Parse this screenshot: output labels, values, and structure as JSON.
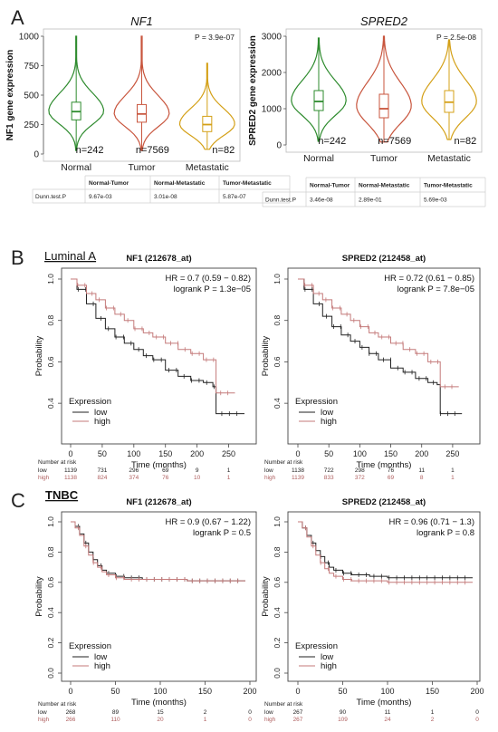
{
  "panels": [
    {
      "letter": "A",
      "violins": [
        0,
        1
      ],
      "tables": [
        0,
        1
      ]
    },
    {
      "letter": "B",
      "subtitle": "Luminal A",
      "km": [
        0,
        1
      ]
    },
    {
      "letter": "C",
      "subtitle": "TNBC",
      "km": [
        2,
        3
      ]
    }
  ],
  "chart_data": [
    {
      "type": "violin",
      "title": "NF1",
      "ylabel": "NF1 gene expression",
      "ylim": [
        0,
        1000
      ],
      "yticks": [
        0,
        250,
        500,
        750,
        1000
      ],
      "pvalue": "P = 3.9e-07",
      "categories": [
        "Normal",
        "Tumor",
        "Metastatic"
      ],
      "counts": [
        "n=242",
        "n=7569",
        "n=82"
      ],
      "colors": [
        "#2e8b2e",
        "#c8553d",
        "#d4a017"
      ],
      "series": [
        {
          "name": "Normal",
          "max": 1000,
          "q3": 440,
          "median": 360,
          "q1": 290,
          "min": 30
        },
        {
          "name": "Tumor",
          "max": 1000,
          "q3": 420,
          "median": 340,
          "q1": 270,
          "min": 30
        },
        {
          "name": "Metastatic",
          "max": 770,
          "q3": 320,
          "median": 250,
          "q1": 190,
          "min": 40
        }
      ]
    },
    {
      "type": "violin",
      "title": "SPRED2",
      "ylabel": "SPRED2 gene expression",
      "ylim": [
        0,
        3000
      ],
      "yticks": [
        0,
        1000,
        2000,
        3000
      ],
      "pvalue": "P = 2.5e-08",
      "categories": [
        "Normal",
        "Tumor",
        "Metastatic"
      ],
      "counts": [
        "n=242",
        "n=7569",
        "n=82"
      ],
      "colors": [
        "#2e8b2e",
        "#c8553d",
        "#d4a017"
      ],
      "series": [
        {
          "name": "Normal",
          "max": 2950,
          "q3": 1500,
          "median": 1200,
          "q1": 950,
          "min": 100
        },
        {
          "name": "Tumor",
          "max": 3000,
          "q3": 1400,
          "median": 1000,
          "q1": 750,
          "min": 80
        },
        {
          "name": "Metastatic",
          "max": 2900,
          "q3": 1500,
          "median": 1180,
          "q1": 900,
          "min": 150
        }
      ]
    },
    {
      "type": "table",
      "row_label": "Dunn.test.P",
      "columns": [
        "Normal-Tumor",
        "Normal-Metastatic",
        "Tumor-Metastatic"
      ],
      "values": [
        "9.67e-03",
        "3.01e-08",
        "5.87e-07"
      ]
    },
    {
      "type": "table",
      "row_label": "Dunn.test.P",
      "columns": [
        "Normal-Tumor",
        "Normal-Metastatic",
        "Tumor-Metastatic"
      ],
      "values": [
        "3.46e-08",
        "2.89e-01",
        "5.69e-03"
      ]
    },
    {
      "type": "line",
      "title": "NF1 (212678_at)",
      "hr": "HR = 0.7 (0.59 − 0.82)",
      "logrank": "logrank P = 1.3e−05",
      "xlabel": "Time (months)",
      "ylabel": "Probability",
      "xlim": [
        0,
        275
      ],
      "ylim": [
        0.3,
        1.0
      ],
      "xticks": [
        0,
        50,
        100,
        150,
        200,
        250
      ],
      "yticks": [
        0.4,
        0.6,
        0.8,
        1.0
      ],
      "legend_title": "Expression",
      "legend_placement": "bottom-left",
      "series": [
        {
          "name": "low",
          "color": "#222222",
          "x": [
            0,
            10,
            25,
            40,
            55,
            70,
            85,
            100,
            115,
            130,
            150,
            170,
            190,
            210,
            225,
            230,
            275
          ],
          "y": [
            1.0,
            0.95,
            0.88,
            0.81,
            0.76,
            0.72,
            0.69,
            0.66,
            0.63,
            0.61,
            0.56,
            0.53,
            0.51,
            0.5,
            0.48,
            0.35,
            0.35
          ]
        },
        {
          "name": "high",
          "color": "#c47a7a",
          "x": [
            0,
            10,
            25,
            40,
            55,
            70,
            85,
            100,
            115,
            130,
            150,
            170,
            190,
            210,
            230,
            240,
            260
          ],
          "y": [
            1.0,
            0.97,
            0.93,
            0.9,
            0.86,
            0.83,
            0.8,
            0.76,
            0.74,
            0.72,
            0.69,
            0.66,
            0.64,
            0.61,
            0.45,
            0.45,
            0.45
          ]
        }
      ],
      "risk_title": "Number at risk",
      "risk_x": [
        0,
        50,
        100,
        150,
        200,
        250
      ],
      "risk": [
        {
          "name": "low",
          "values": [
            "1139",
            "731",
            "296",
            "69",
            "9",
            "1"
          ]
        },
        {
          "name": "high",
          "values": [
            "1138",
            "824",
            "374",
            "76",
            "10",
            "1"
          ]
        }
      ]
    },
    {
      "type": "line",
      "title": "SPRED2 (212458_at)",
      "hr": "HR = 0.72 (0.61 − 0.85)",
      "logrank": "logrank P = 7.8e−05",
      "xlabel": "Time (months)",
      "ylabel": "Probability",
      "xlim": [
        0,
        275
      ],
      "ylim": [
        0.3,
        1.0
      ],
      "xticks": [
        0,
        50,
        100,
        150,
        200,
        250
      ],
      "yticks": [
        0.4,
        0.6,
        0.8,
        1.0
      ],
      "legend_title": "Expression",
      "legend_placement": "bottom-left",
      "series": [
        {
          "name": "low",
          "color": "#222222",
          "x": [
            0,
            10,
            25,
            40,
            55,
            70,
            85,
            100,
            115,
            130,
            150,
            170,
            190,
            210,
            225,
            230,
            265
          ],
          "y": [
            1.0,
            0.95,
            0.88,
            0.82,
            0.77,
            0.73,
            0.7,
            0.67,
            0.64,
            0.61,
            0.57,
            0.55,
            0.52,
            0.5,
            0.49,
            0.35,
            0.35
          ]
        },
        {
          "name": "high",
          "color": "#c47a7a",
          "x": [
            0,
            10,
            25,
            40,
            55,
            70,
            85,
            100,
            115,
            130,
            150,
            170,
            190,
            210,
            230,
            250,
            260
          ],
          "y": [
            1.0,
            0.97,
            0.93,
            0.9,
            0.86,
            0.83,
            0.8,
            0.77,
            0.74,
            0.72,
            0.69,
            0.66,
            0.64,
            0.6,
            0.48,
            0.48,
            0.48
          ]
        }
      ],
      "risk_title": "Number at risk",
      "risk_x": [
        0,
        50,
        100,
        150,
        200,
        250
      ],
      "risk": [
        {
          "name": "low",
          "values": [
            "1138",
            "722",
            "298",
            "76",
            "11",
            "1"
          ]
        },
        {
          "name": "high",
          "values": [
            "1139",
            "833",
            "372",
            "69",
            "8",
            "1"
          ]
        }
      ]
    },
    {
      "type": "line",
      "title": "NF1 (212678_at)",
      "hr": "HR = 0.9 (0.67 − 1.22)",
      "logrank": "logrank P = 0.5",
      "xlabel": "Time (months)",
      "ylabel": "Probability",
      "xlim": [
        0,
        200
      ],
      "ylim": [
        0.0,
        1.0
      ],
      "xticks": [
        0,
        50,
        100,
        150,
        200
      ],
      "yticks": [
        0.0,
        0.2,
        0.4,
        0.6,
        0.8,
        1.0
      ],
      "legend_title": "Expression",
      "legend_placement": "bottom-left",
      "series": [
        {
          "name": "low",
          "color": "#222222",
          "x": [
            0,
            5,
            10,
            15,
            20,
            25,
            30,
            35,
            40,
            50,
            60,
            80,
            100,
            130,
            160,
            195
          ],
          "y": [
            1.0,
            0.97,
            0.92,
            0.86,
            0.8,
            0.75,
            0.71,
            0.68,
            0.66,
            0.64,
            0.63,
            0.62,
            0.62,
            0.61,
            0.61,
            0.61
          ]
        },
        {
          "name": "high",
          "color": "#c47a7a",
          "x": [
            0,
            5,
            10,
            15,
            20,
            25,
            30,
            35,
            40,
            50,
            60,
            80,
            100,
            130,
            160,
            195
          ],
          "y": [
            1.0,
            0.96,
            0.91,
            0.84,
            0.78,
            0.73,
            0.7,
            0.67,
            0.65,
            0.63,
            0.62,
            0.62,
            0.62,
            0.61,
            0.61,
            0.61
          ]
        }
      ],
      "risk_title": "Number at risk",
      "risk_x": [
        0,
        50,
        100,
        150,
        200
      ],
      "risk": [
        {
          "name": "low",
          "values": [
            "268",
            "89",
            "15",
            "2",
            "0"
          ]
        },
        {
          "name": "high",
          "values": [
            "266",
            "110",
            "20",
            "1",
            "0"
          ]
        }
      ]
    },
    {
      "type": "line",
      "title": "SPRED2 (212458_at)",
      "hr": "HR = 0.96 (0.71 − 1.3)",
      "logrank": "logrank P = 0.8",
      "xlabel": "Time (months)",
      "ylabel": "Probability",
      "xlim": [
        0,
        200
      ],
      "ylim": [
        0.0,
        1.0
      ],
      "xticks": [
        0,
        50,
        100,
        150,
        200
      ],
      "yticks": [
        0.0,
        0.2,
        0.4,
        0.6,
        0.8,
        1.0
      ],
      "legend_title": "Expression",
      "legend_placement": "bottom-left",
      "series": [
        {
          "name": "low",
          "color": "#222222",
          "x": [
            0,
            5,
            10,
            15,
            20,
            25,
            30,
            35,
            40,
            50,
            60,
            80,
            100,
            130,
            160,
            195
          ],
          "y": [
            1.0,
            0.96,
            0.91,
            0.86,
            0.81,
            0.77,
            0.73,
            0.7,
            0.68,
            0.66,
            0.65,
            0.64,
            0.63,
            0.63,
            0.63,
            0.63
          ]
        },
        {
          "name": "high",
          "color": "#c47a7a",
          "x": [
            0,
            5,
            10,
            15,
            20,
            25,
            30,
            35,
            40,
            50,
            60,
            80,
            100,
            130,
            160,
            195
          ],
          "y": [
            1.0,
            0.96,
            0.9,
            0.84,
            0.78,
            0.73,
            0.69,
            0.66,
            0.64,
            0.62,
            0.61,
            0.61,
            0.6,
            0.6,
            0.6,
            0.6
          ]
        }
      ],
      "risk_title": "Number at risk",
      "risk_x": [
        0,
        50,
        100,
        150,
        200
      ],
      "risk": [
        {
          "name": "low",
          "values": [
            "267",
            "90",
            "11",
            "1",
            "0"
          ]
        },
        {
          "name": "high",
          "values": [
            "267",
            "109",
            "24",
            "2",
            "0"
          ]
        }
      ]
    }
  ]
}
